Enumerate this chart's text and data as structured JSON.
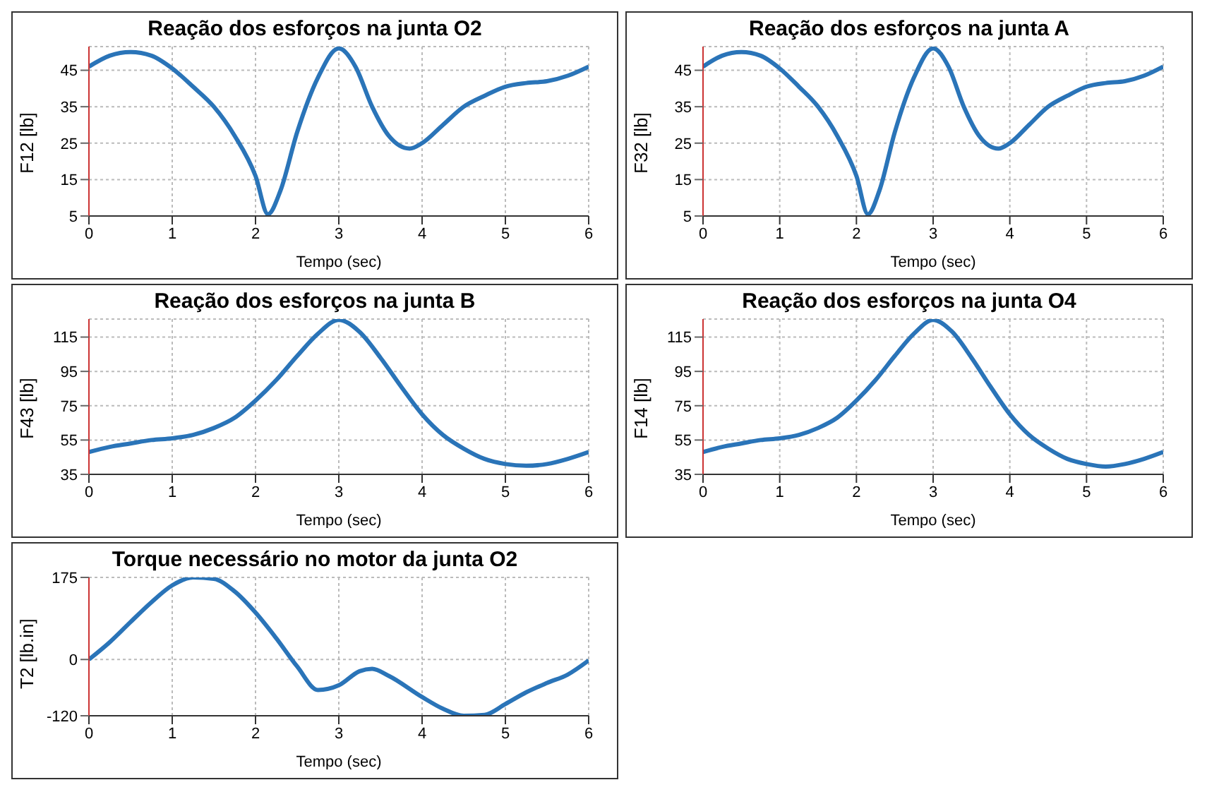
{
  "chart_data": [
    {
      "type": "line",
      "title": "Reação dos esforços na junta O2",
      "xlabel": "Tempo (sec)",
      "ylabel": "F12 [lb]",
      "xlim": [
        0,
        6
      ],
      "xticks": [
        0,
        1,
        2,
        3,
        4,
        5,
        6
      ],
      "ylim": [
        5,
        51.5
      ],
      "yticks": [
        5,
        15,
        25,
        35,
        45
      ],
      "grid": true,
      "marker": "none",
      "line_style": "solid",
      "x": [
        0,
        0.25,
        0.5,
        0.75,
        1,
        1.25,
        1.5,
        1.75,
        2,
        2.15,
        2.3,
        2.5,
        2.75,
        3,
        3.2,
        3.4,
        3.6,
        3.85,
        4,
        4.25,
        4.5,
        4.75,
        5,
        5.25,
        5.5,
        5.75,
        6
      ],
      "series": [
        {
          "color": "#2a74b8",
          "values": [
            46,
            49,
            50,
            49,
            45.5,
            40.5,
            35,
            27,
            16,
            5.5,
            12,
            28,
            43,
            51,
            46,
            35,
            27,
            23.5,
            25,
            30,
            35,
            38,
            40.5,
            41.5,
            42,
            43.5,
            46
          ]
        }
      ]
    },
    {
      "type": "line",
      "title": "Reação dos esforços na junta A",
      "xlabel": "Tempo (sec)",
      "ylabel": "F32 [lb]",
      "xlim": [
        0,
        6
      ],
      "xticks": [
        0,
        1,
        2,
        3,
        4,
        5,
        6
      ],
      "ylim": [
        5,
        51.5
      ],
      "yticks": [
        5,
        15,
        25,
        35,
        45
      ],
      "grid": true,
      "marker": "none",
      "line_style": "solid",
      "x": [
        0,
        0.25,
        0.5,
        0.75,
        1,
        1.25,
        1.5,
        1.75,
        2,
        2.15,
        2.3,
        2.5,
        2.75,
        3,
        3.2,
        3.4,
        3.6,
        3.85,
        4,
        4.25,
        4.5,
        4.75,
        5,
        5.25,
        5.5,
        5.75,
        6
      ],
      "series": [
        {
          "color": "#2a74b8",
          "values": [
            46,
            49,
            50,
            49,
            45.5,
            40.5,
            35,
            27,
            16,
            5.5,
            12,
            28,
            43,
            51,
            46,
            35,
            27,
            23.5,
            25,
            30,
            35,
            38,
            40.5,
            41.5,
            42,
            43.5,
            46
          ]
        }
      ]
    },
    {
      "type": "line",
      "title": "Reação dos esforços na junta B",
      "xlabel": "Tempo (sec)",
      "ylabel": "F43 [lb]",
      "xlim": [
        0,
        6
      ],
      "xticks": [
        0,
        1,
        2,
        3,
        4,
        5,
        6
      ],
      "ylim": [
        35,
        125.5
      ],
      "yticks": [
        35,
        55,
        75,
        95,
        115
      ],
      "grid": true,
      "marker": "none",
      "line_style": "solid",
      "x": [
        0,
        0.25,
        0.5,
        0.75,
        1,
        1.25,
        1.5,
        1.75,
        2,
        2.25,
        2.5,
        2.75,
        3,
        3.25,
        3.5,
        3.75,
        4,
        4.25,
        4.5,
        4.75,
        5,
        5.25,
        5.5,
        5.75,
        6
      ],
      "series": [
        {
          "color": "#2a74b8",
          "values": [
            48,
            51,
            53,
            55,
            56,
            58,
            62,
            68,
            78,
            90,
            104,
            117,
            125,
            118,
            103,
            86,
            70,
            58,
            50,
            44,
            41,
            40,
            41,
            44,
            48
          ]
        }
      ]
    },
    {
      "type": "line",
      "title": "Reação dos esforços na junta O4",
      "xlabel": "Tempo (sec)",
      "ylabel": "F14 [lb]",
      "xlim": [
        0,
        6
      ],
      "xticks": [
        0,
        1,
        2,
        3,
        4,
        5,
        6
      ],
      "ylim": [
        35,
        125.5
      ],
      "yticks": [
        35,
        55,
        75,
        95,
        115
      ],
      "grid": true,
      "marker": "none",
      "line_style": "solid",
      "x": [
        0,
        0.25,
        0.5,
        0.75,
        1,
        1.25,
        1.5,
        1.75,
        2,
        2.25,
        2.5,
        2.75,
        3,
        3.25,
        3.5,
        3.75,
        4,
        4.25,
        4.5,
        4.75,
        5,
        5.25,
        5.5,
        5.75,
        6
      ],
      "series": [
        {
          "color": "#2a74b8",
          "values": [
            48,
            51,
            53,
            55,
            56,
            58,
            62,
            68,
            78,
            90,
            104,
            117,
            125,
            118,
            103,
            86,
            70,
            58,
            50,
            44,
            41,
            39.5,
            41,
            44,
            48
          ]
        }
      ]
    },
    {
      "type": "line",
      "title": "Torque necessário no motor da junta O2",
      "xlabel": "Tempo (sec)",
      "ylabel": "T2 [lb.in]",
      "xlim": [
        0,
        6
      ],
      "xticks": [
        0,
        1,
        2,
        3,
        4,
        5,
        6
      ],
      "ylim": [
        -120,
        175
      ],
      "yticks": [
        -120,
        0,
        175
      ],
      "grid": true,
      "marker": "none",
      "line_style": "solid",
      "x": [
        0,
        0.25,
        0.5,
        0.75,
        1,
        1.25,
        1.5,
        1.75,
        2,
        2.25,
        2.5,
        2.75,
        3,
        3.25,
        3.4,
        3.6,
        4,
        4.25,
        4.5,
        4.75,
        5,
        5.25,
        5.5,
        5.75,
        6
      ],
      "series": [
        {
          "color": "#2a74b8",
          "values": [
            0,
            37,
            80,
            122,
            158,
            175,
            172,
            145,
            100,
            45,
            -15,
            -65,
            -55,
            -25,
            -20,
            -35,
            -80,
            -105,
            -120,
            -118,
            -95,
            -70,
            -50,
            -32,
            -2
          ]
        }
      ]
    }
  ]
}
